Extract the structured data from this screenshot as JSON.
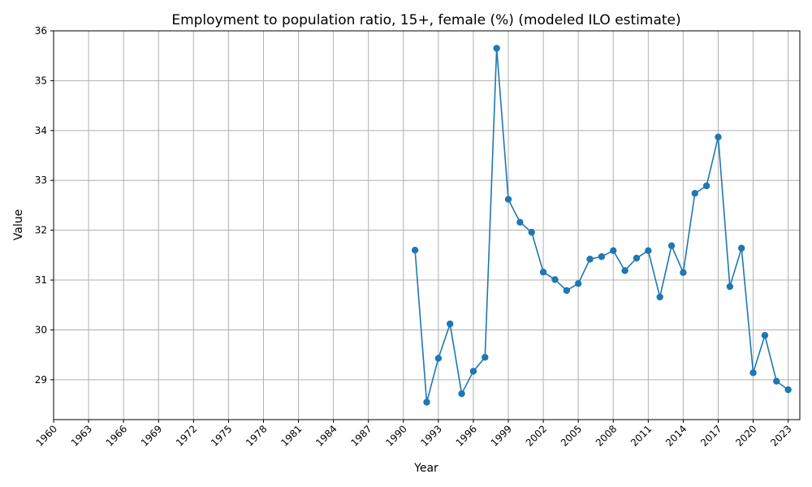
{
  "chart_data": {
    "type": "line",
    "title": "Employment to population ratio, 15+, female (%) (modeled ILO estimate)",
    "xlabel": "Year",
    "ylabel": "Value",
    "xlim": [
      1960,
      2024
    ],
    "ylim": [
      28.2,
      36
    ],
    "x_ticks": [
      "1960",
      "1963",
      "1966",
      "1969",
      "1972",
      "1975",
      "1978",
      "1981",
      "1984",
      "1987",
      "1990",
      "1993",
      "1996",
      "1999",
      "2002",
      "2005",
      "2008",
      "2011",
      "2014",
      "2017",
      "2020",
      "2023"
    ],
    "y_ticks": [
      "29",
      "30",
      "31",
      "32",
      "33",
      "34",
      "35",
      "36"
    ],
    "grid": true,
    "series_color": "#1f77b4",
    "series": [
      {
        "x": [
          1991,
          1992,
          1993,
          1994,
          1995,
          1996,
          1997,
          1998,
          1999,
          2000,
          2001,
          2002,
          2003,
          2004,
          2005,
          2006,
          2007,
          2008,
          2009,
          2010,
          2011,
          2012,
          2013,
          2014,
          2015,
          2016,
          2017,
          2018,
          2019,
          2020,
          2021,
          2022,
          2023
        ],
        "values": [
          31.6,
          28.55,
          29.43,
          30.12,
          28.72,
          29.17,
          29.45,
          35.65,
          32.62,
          32.16,
          31.96,
          31.16,
          31.01,
          30.79,
          30.93,
          31.42,
          31.47,
          31.59,
          31.19,
          31.44,
          31.59,
          30.66,
          31.69,
          31.15,
          32.74,
          32.89,
          33.87,
          30.87,
          31.64,
          29.14,
          29.89,
          28.97,
          28.8
        ]
      }
    ]
  }
}
